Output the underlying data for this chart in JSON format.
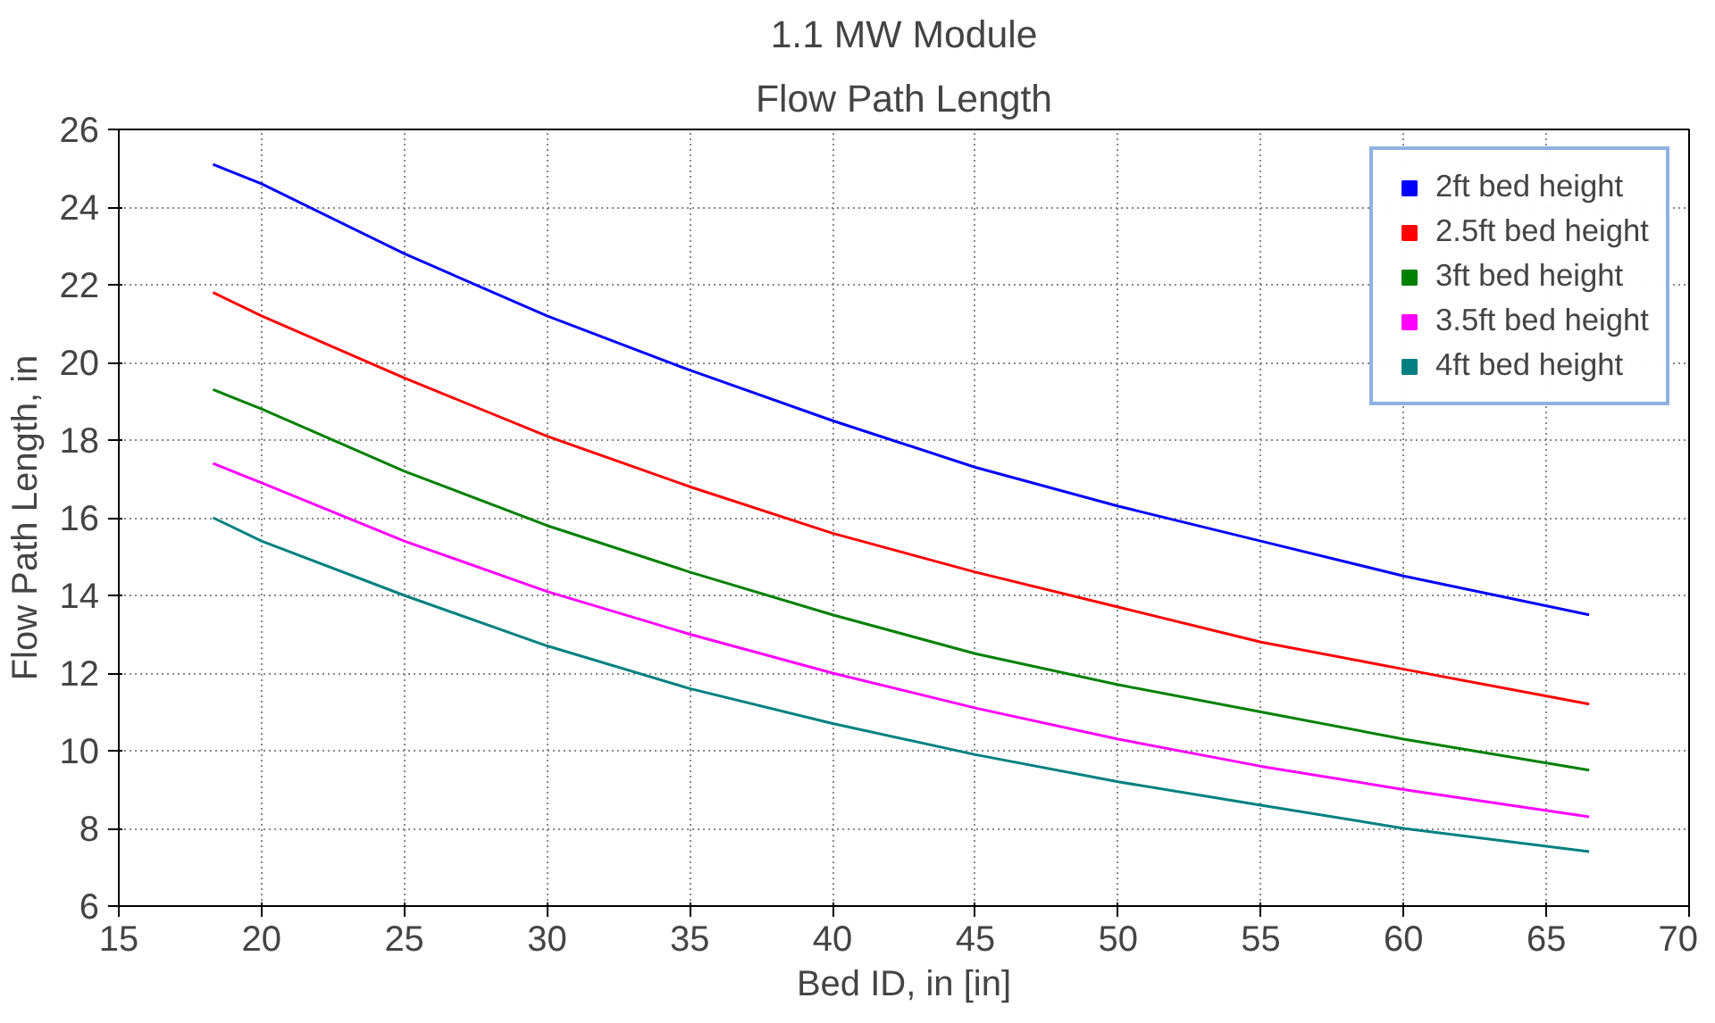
{
  "chart_data": {
    "type": "line",
    "title": "1.1 MW Module",
    "subtitle": "Flow Path Length",
    "xlabel": "Bed ID, in [in]",
    "ylabel": "Flow Path Length, in",
    "x": [
      18.3,
      20,
      25,
      30,
      35,
      40,
      45,
      50,
      55,
      60,
      66.5
    ],
    "series": [
      {
        "name": "2ft bed height",
        "color": "#0000ff",
        "values": [
          25.1,
          24.6,
          22.8,
          21.2,
          19.8,
          18.5,
          17.3,
          16.3,
          15.4,
          14.5,
          13.5
        ]
      },
      {
        "name": "2.5ft bed height",
        "color": "#ff0000",
        "values": [
          21.8,
          21.2,
          19.6,
          18.1,
          16.8,
          15.6,
          14.6,
          13.7,
          12.8,
          12.1,
          11.2
        ]
      },
      {
        "name": "3ft bed height",
        "color": "#008000",
        "values": [
          19.3,
          18.8,
          17.2,
          15.8,
          14.6,
          13.5,
          12.5,
          11.7,
          11.0,
          10.3,
          9.5
        ]
      },
      {
        "name": "3.5ft bed height",
        "color": "#ff00ff",
        "values": [
          17.4,
          16.9,
          15.4,
          14.1,
          13.0,
          12.0,
          11.1,
          10.3,
          9.6,
          9.0,
          8.3
        ]
      },
      {
        "name": "4ft bed height",
        "color": "#008080",
        "values": [
          16.0,
          15.4,
          14.0,
          12.7,
          11.6,
          10.7,
          9.9,
          9.2,
          8.6,
          8.0,
          7.4
        ]
      }
    ],
    "xlim": [
      15,
      70
    ],
    "xticks": [
      15,
      20,
      25,
      30,
      35,
      40,
      45,
      50,
      55,
      60,
      65,
      70
    ],
    "ylim": [
      6,
      26
    ],
    "yticks": [
      6,
      8,
      10,
      12,
      14,
      16,
      18,
      20,
      22,
      24,
      26
    ],
    "grid": true,
    "legend": "top right",
    "line_style": "solid",
    "marker": "none"
  }
}
